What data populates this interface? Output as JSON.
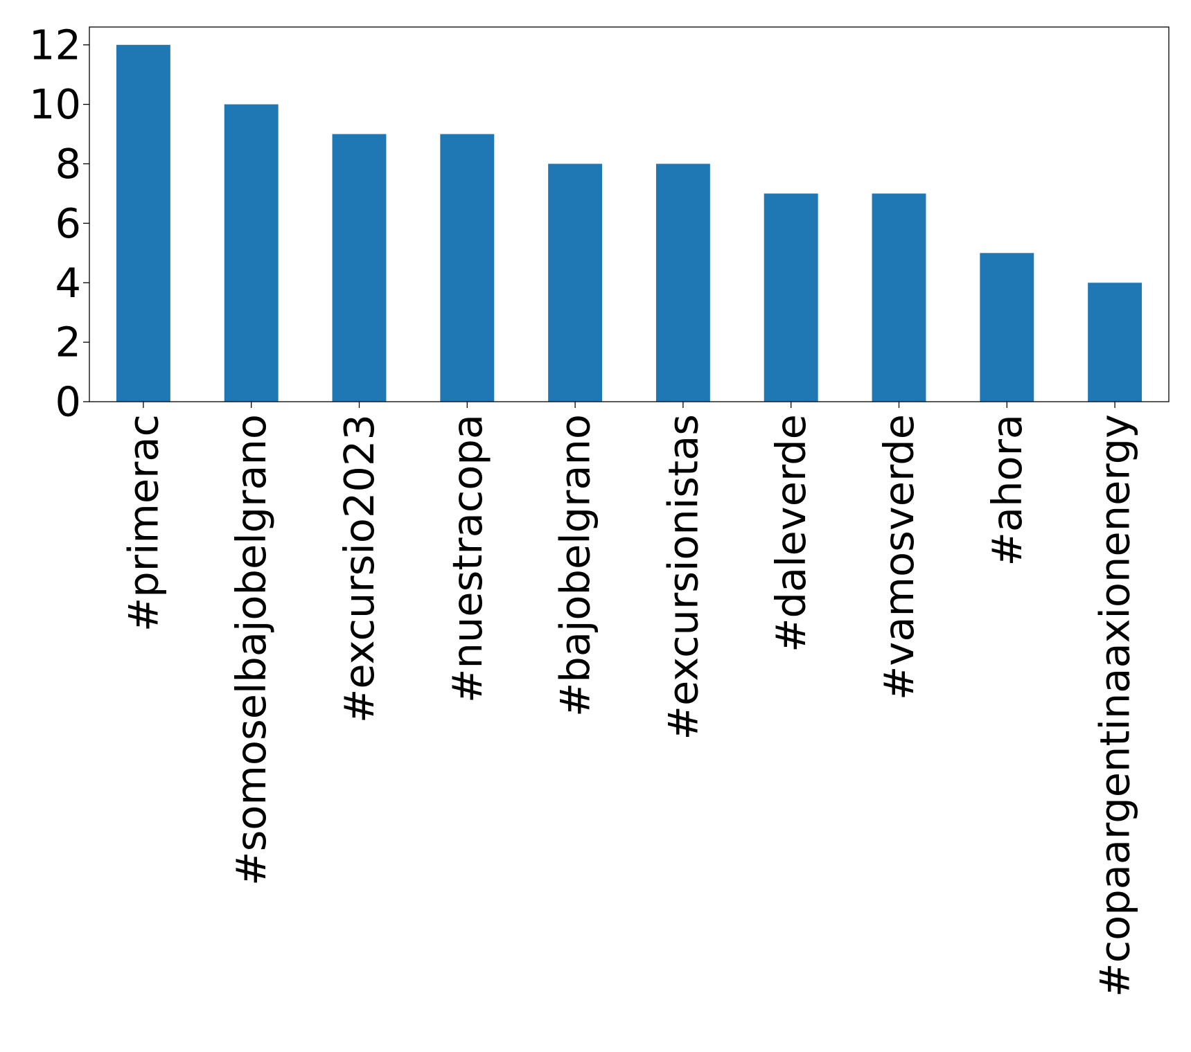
{
  "chart_data": {
    "type": "bar",
    "categories": [
      "#primerac",
      "#somoselbajobelgrano",
      "#excursio2023",
      "#nuestracopa",
      "#bajobelgrano",
      "#excursionistas",
      "#daleverde",
      "#vamosverde",
      "#ahora",
      "#copaargentinaaxionenergy"
    ],
    "values": [
      12,
      10,
      9,
      9,
      8,
      8,
      7,
      7,
      5,
      4
    ],
    "title": "",
    "xlabel": "",
    "ylabel": "",
    "ylim": [
      0,
      12.6
    ],
    "yticks": [
      0,
      2,
      4,
      6,
      8,
      10,
      12
    ],
    "grid": false,
    "bar_color": "#1f77b4",
    "x_tick_rotation_deg": 90
  }
}
